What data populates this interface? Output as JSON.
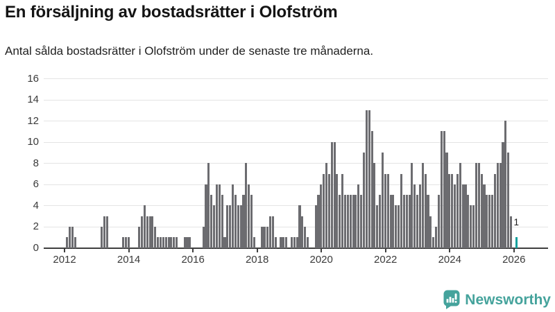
{
  "header": {
    "title": "En försäljning av bostadsrätter i Olofström",
    "subtitle": "Antal sålda bostadsrätter i Olofström under de senaste tre månaderna."
  },
  "chart_data": {
    "type": "bar",
    "title": "En försäljning av bostadsrätter i Olofström",
    "subtitle": "Antal sålda bostadsrätter i Olofström under de senaste tre månaderna.",
    "xlabel": "",
    "ylabel": "",
    "ylim": [
      0,
      16
    ],
    "grid": true,
    "legend": false,
    "y_ticks": [
      0,
      2,
      4,
      6,
      8,
      10,
      12,
      14,
      16
    ],
    "x_tick_labels": [
      "2012",
      "2014",
      "2016",
      "2018",
      "2020",
      "2022",
      "2024",
      "2026"
    ],
    "series_start": "2012-01",
    "series_frequency": "monthly",
    "values": [
      1,
      2,
      2,
      1,
      0,
      0,
      0,
      0,
      0,
      0,
      0,
      0,
      0,
      2,
      3,
      3,
      0,
      0,
      0,
      0,
      0,
      1,
      1,
      1,
      0,
      0,
      0,
      2,
      3,
      4,
      3,
      3,
      3,
      2,
      1,
      1,
      1,
      1,
      1,
      1,
      1,
      1,
      0,
      0,
      1,
      1,
      1,
      0,
      0,
      0,
      0,
      2,
      6,
      8,
      5,
      4,
      6,
      6,
      5,
      1,
      4,
      4,
      6,
      5,
      4,
      4,
      5,
      8,
      6,
      5,
      1,
      0,
      0,
      2,
      2,
      2,
      3,
      3,
      1,
      0,
      1,
      1,
      1,
      0,
      1,
      1,
      1,
      4,
      3,
      2,
      1,
      0,
      0,
      4,
      5,
      6,
      7,
      8,
      7,
      10,
      10,
      7,
      5,
      7,
      5,
      5,
      5,
      5,
      5,
      6,
      5,
      9,
      13,
      13,
      11,
      8,
      4,
      5,
      9,
      7,
      7,
      5,
      5,
      4,
      4,
      7,
      5,
      5,
      5,
      8,
      6,
      5,
      6,
      8,
      7,
      5,
      3,
      1,
      2,
      5,
      11,
      11,
      9,
      7,
      7,
      6,
      7,
      8,
      6,
      6,
      5,
      4,
      4,
      8,
      8,
      7,
      6,
      5,
      5,
      5,
      7,
      8,
      8,
      10,
      12,
      9,
      3,
      0,
      1
    ],
    "highlight": {
      "index": 168,
      "value": 1,
      "label": "1"
    },
    "colors": {
      "bar": "#6c6c70",
      "highlight_bar": "#12a19d",
      "gridline": "#e4e4e4",
      "axis": "#3e3e3e",
      "tick_text": "#3a3a3a"
    }
  },
  "branding": {
    "logo_text": "Newsworthy",
    "logo_color": "#45a39c",
    "logo_icon": "newsworthy-bar-chart-bubble-icon"
  }
}
